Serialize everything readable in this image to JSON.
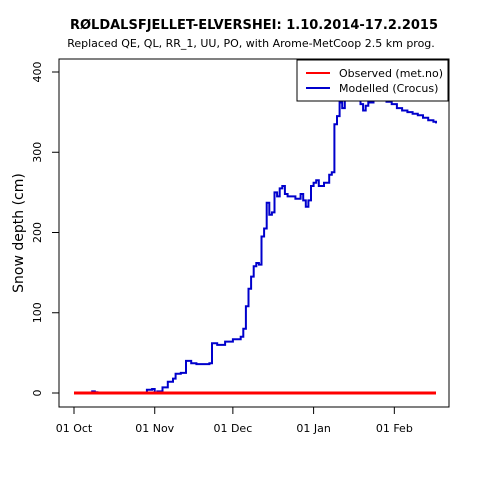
{
  "chart_data": {
    "type": "line",
    "title": "RØLDALSFJELLET-ELVERSHEI: 1.10.2014-17.2.2015",
    "subtitle": "Replaced QE, QL, RR_1, UU, PO,  with Arome-MetCoop 2.5 km prog.",
    "xlabel": "",
    "ylabel": "Snow depth (cm)",
    "xlim": [
      "2014-10-01",
      "2015-02-17"
    ],
    "ylim": [
      0,
      410
    ],
    "x_ticks": [
      {
        "date": "2014-10-01",
        "label": "01 Oct"
      },
      {
        "date": "2014-11-01",
        "label": "01 Nov"
      },
      {
        "date": "2014-12-01",
        "label": "01 Dec"
      },
      {
        "date": "2015-01-01",
        "label": "01 Jan"
      },
      {
        "date": "2015-02-01",
        "label": "01 Feb"
      }
    ],
    "y_ticks": [
      0,
      100,
      200,
      300,
      400
    ],
    "grid": false,
    "legend_position": "top-right",
    "series": [
      {
        "name": "Observed (met.no)",
        "color": "#ff0000",
        "points": [
          [
            "2014-10-01",
            0
          ],
          [
            "2015-02-17",
            0
          ]
        ]
      },
      {
        "name": "Modelled (Crocus)",
        "color": "#0000cc",
        "points": [
          [
            "2014-10-01",
            0
          ],
          [
            "2014-10-07",
            0
          ],
          [
            "2014-10-08",
            2
          ],
          [
            "2014-10-09",
            1
          ],
          [
            "2014-10-10",
            0
          ],
          [
            "2014-10-28",
            0
          ],
          [
            "2014-10-29",
            4
          ],
          [
            "2014-10-31",
            5
          ],
          [
            "2014-11-01",
            0
          ],
          [
            "2014-11-02",
            2
          ],
          [
            "2014-11-04",
            7
          ],
          [
            "2014-11-06",
            14
          ],
          [
            "2014-11-08",
            18
          ],
          [
            "2014-11-09",
            24
          ],
          [
            "2014-11-11",
            25
          ],
          [
            "2014-11-13",
            40
          ],
          [
            "2014-11-15",
            37
          ],
          [
            "2014-11-17",
            36
          ],
          [
            "2014-11-22",
            37
          ],
          [
            "2014-11-23",
            62
          ],
          [
            "2014-11-25",
            60
          ],
          [
            "2014-11-28",
            64
          ],
          [
            "2014-12-01",
            67
          ],
          [
            "2014-12-04",
            70
          ],
          [
            "2014-12-05",
            80
          ],
          [
            "2014-12-06",
            108
          ],
          [
            "2014-12-07",
            130
          ],
          [
            "2014-12-08",
            145
          ],
          [
            "2014-12-09",
            158
          ],
          [
            "2014-12-10",
            162
          ],
          [
            "2014-12-11",
            160
          ],
          [
            "2014-12-12",
            195
          ],
          [
            "2014-12-13",
            205
          ],
          [
            "2014-12-14",
            237
          ],
          [
            "2014-12-15",
            222
          ],
          [
            "2014-12-16",
            225
          ],
          [
            "2014-12-17",
            250
          ],
          [
            "2014-12-18",
            245
          ],
          [
            "2014-12-19",
            255
          ],
          [
            "2014-12-20",
            258
          ],
          [
            "2014-12-21",
            248
          ],
          [
            "2014-12-22",
            245
          ],
          [
            "2014-12-25",
            242
          ],
          [
            "2014-12-27",
            248
          ],
          [
            "2014-12-28",
            240
          ],
          [
            "2014-12-29",
            232
          ],
          [
            "2014-12-30",
            240
          ],
          [
            "2014-12-31",
            258
          ],
          [
            "2015-01-01",
            262
          ],
          [
            "2015-01-02",
            265
          ],
          [
            "2015-01-03",
            258
          ],
          [
            "2015-01-05",
            262
          ],
          [
            "2015-01-07",
            272
          ],
          [
            "2015-01-08",
            275
          ],
          [
            "2015-01-09",
            335
          ],
          [
            "2015-01-10",
            345
          ],
          [
            "2015-01-11",
            362
          ],
          [
            "2015-01-12",
            355
          ],
          [
            "2015-01-13",
            368
          ],
          [
            "2015-01-14",
            405
          ],
          [
            "2015-01-15",
            395
          ],
          [
            "2015-01-16",
            375
          ],
          [
            "2015-01-17",
            383
          ],
          [
            "2015-01-18",
            372
          ],
          [
            "2015-01-19",
            360
          ],
          [
            "2015-01-20",
            352
          ],
          [
            "2015-01-21",
            358
          ],
          [
            "2015-01-22",
            362
          ],
          [
            "2015-01-24",
            365
          ],
          [
            "2015-01-25",
            372
          ],
          [
            "2015-01-26",
            378
          ],
          [
            "2015-01-27",
            370
          ],
          [
            "2015-01-29",
            363
          ],
          [
            "2015-01-31",
            360
          ],
          [
            "2015-02-02",
            355
          ],
          [
            "2015-02-04",
            352
          ],
          [
            "2015-02-06",
            350
          ],
          [
            "2015-02-08",
            348
          ],
          [
            "2015-02-10",
            346
          ],
          [
            "2015-02-12",
            343
          ],
          [
            "2015-02-14",
            340
          ],
          [
            "2015-02-16",
            338
          ],
          [
            "2015-02-17",
            336
          ]
        ]
      }
    ]
  }
}
